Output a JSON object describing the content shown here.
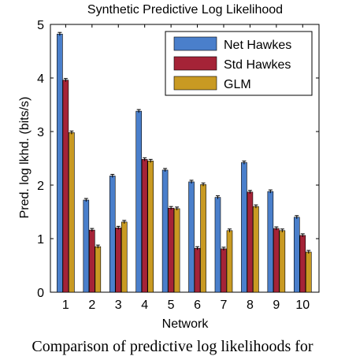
{
  "chart_data": {
    "type": "bar",
    "title": "Synthetic Predictive Log Likelihood",
    "xlabel": "Network",
    "ylabel": "Pred. log lkhd. (bits/s)",
    "categories": [
      "1",
      "2",
      "3",
      "4",
      "5",
      "6",
      "7",
      "8",
      "9",
      "10"
    ],
    "ylim": [
      0,
      5
    ],
    "yticks": [
      "0",
      "1",
      "2",
      "3",
      "4",
      "5"
    ],
    "grid": false,
    "legend_position": "top-right",
    "series": [
      {
        "name": "Net Hawkes",
        "color": "#4a7fcb",
        "values": [
          4.82,
          1.72,
          2.17,
          3.38,
          2.28,
          2.06,
          1.77,
          2.42,
          1.88,
          1.4
        ],
        "errors": [
          0.03,
          0.03,
          0.03,
          0.03,
          0.03,
          0.03,
          0.03,
          0.03,
          0.03,
          0.03
        ]
      },
      {
        "name": "Std Hawkes",
        "color": "#a52337",
        "values": [
          3.96,
          1.16,
          1.2,
          2.48,
          1.57,
          0.82,
          0.81,
          1.87,
          1.19,
          1.06
        ],
        "errors": [
          0.03,
          0.03,
          0.03,
          0.03,
          0.03,
          0.03,
          0.03,
          0.03,
          0.03,
          0.03
        ]
      },
      {
        "name": "GLM",
        "color": "#c99a22",
        "values": [
          2.98,
          0.85,
          1.31,
          2.45,
          1.56,
          2.01,
          1.15,
          1.6,
          1.15,
          0.75
        ],
        "errors": [
          0.03,
          0.03,
          0.03,
          0.03,
          0.03,
          0.03,
          0.03,
          0.03,
          0.03,
          0.03
        ]
      }
    ]
  },
  "caption": "Comparison of predictive log likelihoods for"
}
